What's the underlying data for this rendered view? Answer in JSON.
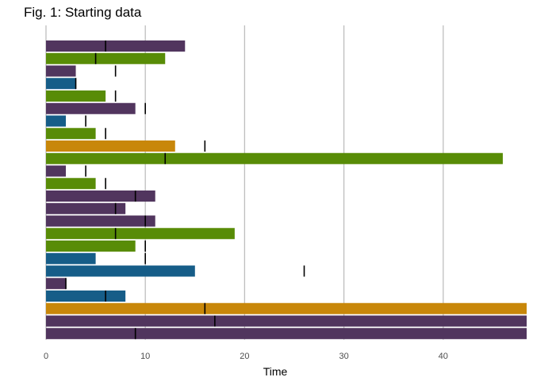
{
  "chart_data": {
    "type": "bar",
    "orientation": "horizontal",
    "title": "Fig. 1: Starting data",
    "xlabel": "Time",
    "ylabel": "",
    "xlim": [
      0,
      48.5
    ],
    "x_ticks": [
      0,
      10,
      20,
      30,
      40
    ],
    "grid": "vertical major lines",
    "legend": "none",
    "colors": {
      "purple": "#51355e",
      "green": "#588c07",
      "blue": "#165d88",
      "orange": "#c8870a"
    },
    "bars": [
      {
        "value": 14,
        "marker": 6,
        "color": "purple"
      },
      {
        "value": 12,
        "marker": 5,
        "color": "green"
      },
      {
        "value": 3,
        "marker": 7,
        "color": "purple"
      },
      {
        "value": 3,
        "marker": 3,
        "color": "blue"
      },
      {
        "value": 6,
        "marker": 7,
        "color": "green"
      },
      {
        "value": 9,
        "marker": 10,
        "color": "purple"
      },
      {
        "value": 2,
        "marker": 4,
        "color": "blue"
      },
      {
        "value": 5,
        "marker": 6,
        "color": "green"
      },
      {
        "value": 13,
        "marker": 16,
        "color": "orange"
      },
      {
        "value": 46,
        "marker": 12,
        "color": "green"
      },
      {
        "value": 2,
        "marker": 4,
        "color": "purple"
      },
      {
        "value": 5,
        "marker": 6,
        "color": "green"
      },
      {
        "value": 11,
        "marker": 9,
        "color": "purple"
      },
      {
        "value": 8,
        "marker": 7,
        "color": "purple"
      },
      {
        "value": 11,
        "marker": 10,
        "color": "purple"
      },
      {
        "value": 19,
        "marker": 7,
        "color": "green"
      },
      {
        "value": 9,
        "marker": 10,
        "color": "green"
      },
      {
        "value": 5,
        "marker": 10,
        "color": "blue"
      },
      {
        "value": 15,
        "marker": 26,
        "color": "blue"
      },
      {
        "value": 2,
        "marker": 2,
        "color": "purple"
      },
      {
        "value": 8,
        "marker": 6,
        "color": "blue"
      },
      {
        "value": 49,
        "marker": 16,
        "color": "orange"
      },
      {
        "value": 49,
        "marker": 17,
        "color": "purple"
      },
      {
        "value": 49,
        "marker": 9,
        "color": "purple"
      }
    ]
  }
}
